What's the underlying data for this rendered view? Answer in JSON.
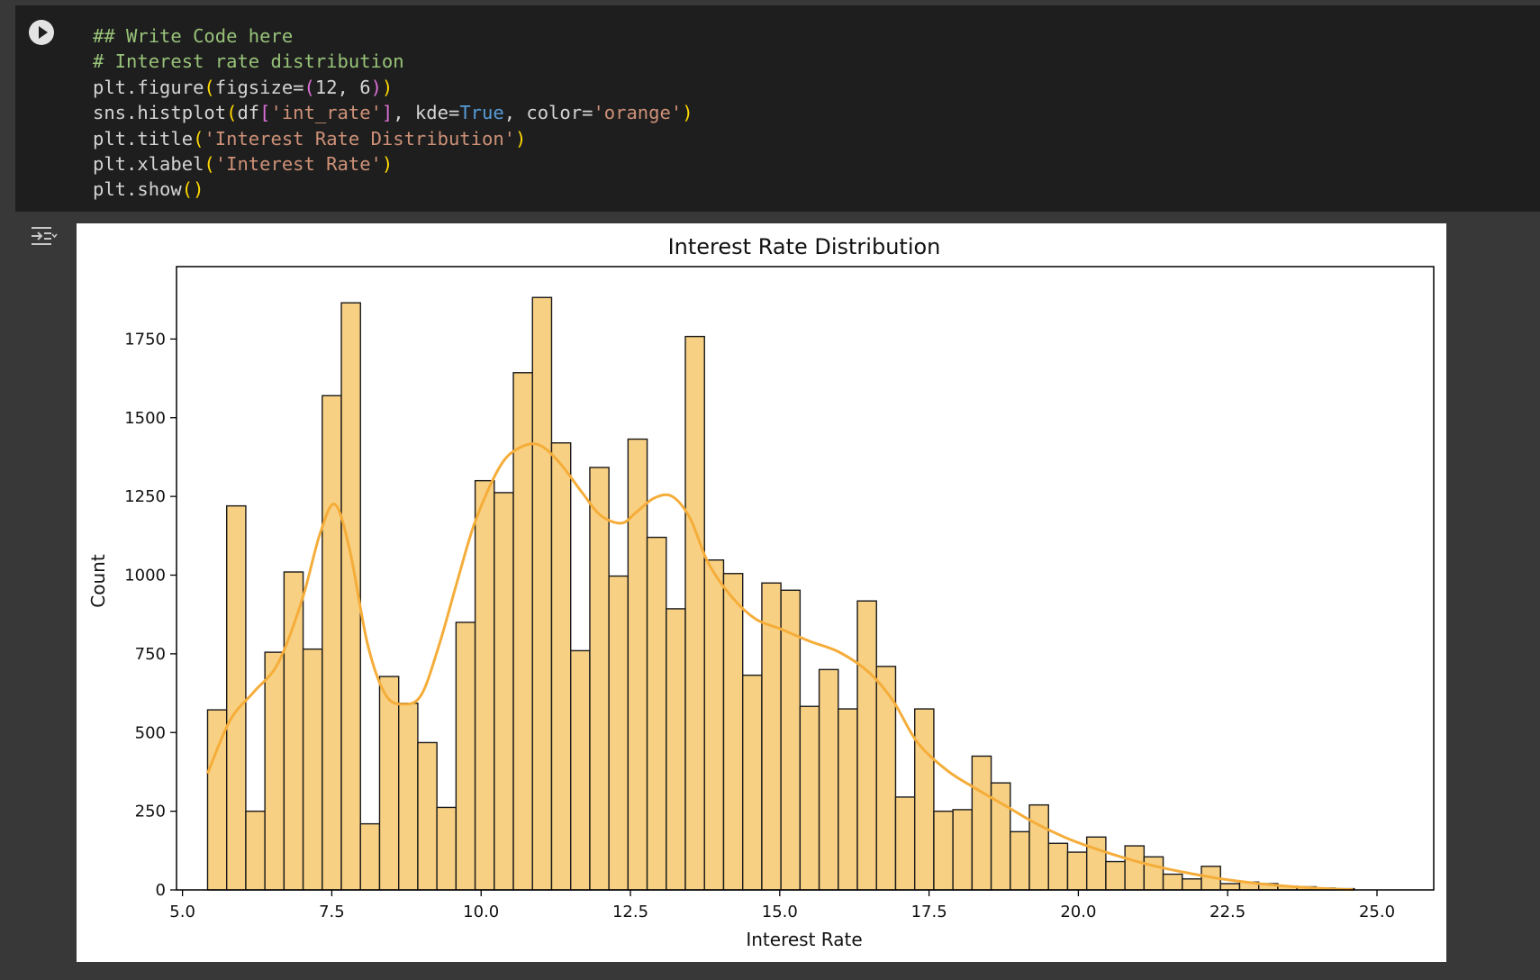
{
  "cell": {
    "run_button_label": "Run cell",
    "code_lines": [
      [
        {
          "t": "## Write Code here",
          "c": "t-comment"
        }
      ],
      [
        {
          "t": "# Interest rate distribution",
          "c": "t-comment"
        }
      ],
      [
        {
          "t": "plt.figure",
          "c": "t-def"
        },
        {
          "t": "(",
          "c": "t-p1"
        },
        {
          "t": "figsize=",
          "c": "t-def"
        },
        {
          "t": "(",
          "c": "t-p2"
        },
        {
          "t": "12",
          "c": "t-def"
        },
        {
          "t": ", ",
          "c": "t-def"
        },
        {
          "t": "6",
          "c": "t-def"
        },
        {
          "t": ")",
          "c": "t-p2"
        },
        {
          "t": ")",
          "c": "t-p1"
        }
      ],
      [
        {
          "t": "sns.histplot",
          "c": "t-def"
        },
        {
          "t": "(",
          "c": "t-p1"
        },
        {
          "t": "df",
          "c": "t-def"
        },
        {
          "t": "[",
          "c": "t-p2"
        },
        {
          "t": "'int_rate'",
          "c": "t-str"
        },
        {
          "t": "]",
          "c": "t-p2"
        },
        {
          "t": ", kde=",
          "c": "t-def"
        },
        {
          "t": "True",
          "c": "t-kw"
        },
        {
          "t": ", color=",
          "c": "t-def"
        },
        {
          "t": "'orange'",
          "c": "t-str"
        },
        {
          "t": ")",
          "c": "t-p1"
        }
      ],
      [
        {
          "t": "plt.title",
          "c": "t-def"
        },
        {
          "t": "(",
          "c": "t-p1"
        },
        {
          "t": "'Interest Rate Distribution'",
          "c": "t-str"
        },
        {
          "t": ")",
          "c": "t-p1"
        }
      ],
      [
        {
          "t": "plt.xlabel",
          "c": "t-def"
        },
        {
          "t": "(",
          "c": "t-p1"
        },
        {
          "t": "'Interest Rate'",
          "c": "t-str"
        },
        {
          "t": ")",
          "c": "t-p1"
        }
      ],
      [
        {
          "t": "plt.show",
          "c": "t-def"
        },
        {
          "t": "(",
          "c": "t-p1"
        },
        {
          "t": ")",
          "c": "t-p1"
        }
      ]
    ]
  },
  "output": {
    "toggle_icon": "output-toggle-icon"
  },
  "colors": {
    "bar_fill": "#f8d083",
    "bar_edge": "#1a1a1a",
    "kde_line": "#f5ad3a",
    "code_bg": "#1e1e1e",
    "page_bg": "#383838"
  },
  "chart_data": {
    "type": "bar",
    "title": "Interest Rate Distribution",
    "xlabel": "Interest Rate",
    "ylabel": "Count",
    "xlim": [
      4.9,
      25.95
    ],
    "ylim": [
      0,
      1980
    ],
    "xticks": [
      5.0,
      7.5,
      10.0,
      12.5,
      15.0,
      17.5,
      20.0,
      22.5,
      25.0
    ],
    "xtick_labels": [
      "5.0",
      "7.5",
      "10.0",
      "12.5",
      "15.0",
      "17.5",
      "20.0",
      "22.5",
      "25.0"
    ],
    "yticks": [
      0,
      250,
      500,
      750,
      1000,
      1250,
      1500,
      1750
    ],
    "ytick_labels": [
      "0",
      "250",
      "500",
      "750",
      "1000",
      "1250",
      "1500",
      "1750"
    ],
    "grid": false,
    "legend": "none",
    "bin_start": 5.42,
    "bin_width": 0.32,
    "values": [
      572,
      1220,
      250,
      755,
      1010,
      765,
      1570,
      1865,
      210,
      678,
      593,
      468,
      262,
      850,
      1300,
      1262,
      1643,
      1882,
      1420,
      760,
      1342,
      997,
      1432,
      1120,
      893,
      1758,
      1048,
      1005,
      682,
      975,
      952,
      583,
      700,
      575,
      918,
      710,
      295,
      575,
      250,
      255,
      425,
      340,
      185,
      270,
      148,
      120,
      168,
      90,
      140,
      105,
      50,
      35,
      75,
      20,
      25,
      20,
      12,
      10,
      6,
      4
    ],
    "kde": {
      "x": [
        5.42,
        5.8,
        6.2,
        6.6,
        7.0,
        7.3,
        7.55,
        7.8,
        8.1,
        8.4,
        8.7,
        9.0,
        9.3,
        9.6,
        9.9,
        10.3,
        10.6,
        10.95,
        11.3,
        11.7,
        12.0,
        12.35,
        12.6,
        12.9,
        13.2,
        13.5,
        13.8,
        14.2,
        14.6,
        15.0,
        15.5,
        16.0,
        16.5,
        16.9,
        17.3,
        17.8,
        18.3,
        18.8,
        19.3,
        19.8,
        20.3,
        20.8,
        21.3,
        21.8,
        22.3,
        22.8,
        23.3,
        23.8,
        24.3,
        24.6
      ],
      "y": [
        370,
        540,
        630,
        720,
        920,
        1130,
        1225,
        1080,
        780,
        620,
        590,
        620,
        780,
        980,
        1170,
        1340,
        1400,
        1415,
        1360,
        1260,
        1190,
        1165,
        1200,
        1245,
        1250,
        1180,
        1040,
        930,
        860,
        830,
        790,
        755,
        690,
        600,
        470,
        380,
        320,
        265,
        210,
        165,
        130,
        100,
        75,
        55,
        38,
        25,
        15,
        8,
        3,
        1
      ]
    }
  }
}
